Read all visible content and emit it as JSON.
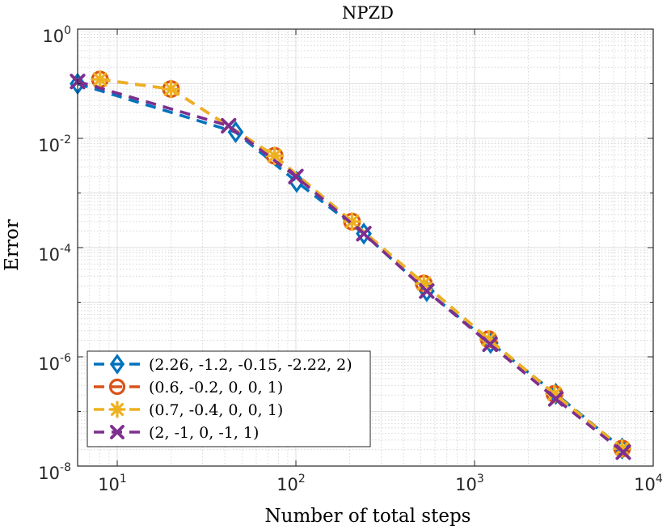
{
  "chart_data": {
    "type": "line",
    "title": "NPZD",
    "xlabel": "Number of total steps",
    "ylabel": "Error",
    "xscale": "log",
    "yscale": "log",
    "xlim": [
      6,
      10000
    ],
    "ylim": [
      1e-08,
      1
    ],
    "grid": true,
    "legend_position": "bottom-left",
    "x_ticks": [
      {
        "value": 10,
        "base": "10",
        "exp": "1"
      },
      {
        "value": 100,
        "base": "10",
        "exp": "2"
      },
      {
        "value": 1000,
        "base": "10",
        "exp": "3"
      },
      {
        "value": 10000,
        "base": "10",
        "exp": "4"
      }
    ],
    "y_ticks": [
      {
        "value": 1e-08,
        "base": "10",
        "exp": "-8"
      },
      {
        "value": 1e-06,
        "base": "10",
        "exp": "-6"
      },
      {
        "value": 0.0001,
        "base": "10",
        "exp": "-4"
      },
      {
        "value": 0.01,
        "base": "10",
        "exp": "-2"
      },
      {
        "value": 1,
        "base": "10",
        "exp": "0"
      }
    ],
    "series": [
      {
        "name": "(2.26, -1.2, -0.15, -2.22, 2)",
        "color": "#0072BD",
        "marker": "diamond",
        "x": [
          6,
          46,
          101,
          240,
          540,
          1230,
          2850,
          6700
        ],
        "y": [
          0.1,
          0.013,
          0.0016,
          0.00018,
          1.6e-05,
          1.8e-06,
          2.1e-07,
          2.1e-08
        ]
      },
      {
        "name": "(0.6, -0.2, 0, 0, 1)",
        "color": "#D95319",
        "marker": "circle",
        "x": [
          8,
          20,
          76,
          206,
          520,
          1200,
          2800,
          6700
        ],
        "y": [
          0.12,
          0.08,
          0.0048,
          0.0003,
          2.2e-05,
          2.1e-06,
          2.1e-07,
          2.1e-08
        ]
      },
      {
        "name": "(0.7, -0.4, 0, 0, 1)",
        "color": "#EDB120",
        "marker": "asterisk",
        "x": [
          8,
          20,
          76,
          206,
          520,
          1200,
          2800,
          6700
        ],
        "y": [
          0.12,
          0.08,
          0.0048,
          0.0003,
          2.2e-05,
          2.1e-06,
          2.1e-07,
          2.1e-08
        ]
      },
      {
        "name": "(2, -1, 0, -1, 1)",
        "color": "#7E2F8E",
        "marker": "x",
        "x": [
          6,
          42,
          100,
          240,
          540,
          1220,
          2850,
          6800
        ],
        "y": [
          0.11,
          0.017,
          0.002,
          0.00018,
          1.6e-05,
          1.7e-06,
          1.7e-07,
          1.8e-08
        ]
      }
    ]
  }
}
